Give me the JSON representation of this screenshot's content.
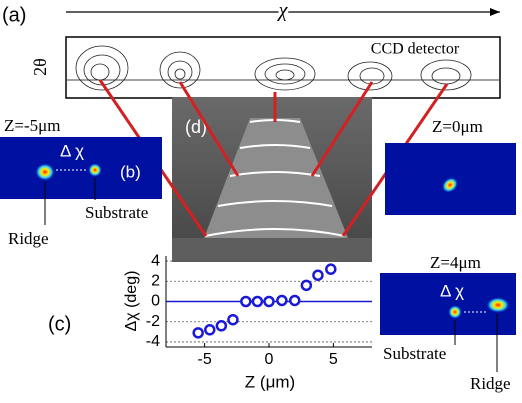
{
  "panels": {
    "a": {
      "label": "(a)",
      "axis_label": "χ",
      "y_label": "2θ",
      "detector": "CCD detector"
    },
    "b": {
      "label": "(b)",
      "z": "Z=-5μm",
      "delta": "Δ χ",
      "left": "Ridge",
      "right": "Substrate"
    },
    "d": {
      "label": "(d)"
    },
    "right_top": {
      "z": "Z=0μm"
    },
    "right_bottom": {
      "z": "Z=4μm",
      "delta": "Δ χ",
      "left": "Substrate",
      "right": "Ridge"
    }
  },
  "chart_data": {
    "type": "scatter",
    "label": "(c)",
    "x_label": "Z (μm)",
    "y_label": "Δχ (deg)",
    "x": [
      -5.5,
      -4.6,
      -3.7,
      -2.8,
      -1.8,
      -0.9,
      0,
      1,
      2,
      2.9,
      3.8,
      4.8
    ],
    "y": [
      -3.1,
      -2.8,
      -2.4,
      -1.8,
      0,
      0,
      0,
      0.1,
      0.1,
      1.6,
      2.6,
      3.2
    ],
    "color": "#1a1ad6",
    "xlim": [
      -8,
      8
    ],
    "ylim": [
      -4.5,
      4.5
    ],
    "xticks": [
      -5,
      0,
      5
    ],
    "yticks": [
      4,
      2,
      0,
      -2,
      -4
    ],
    "grid": true
  }
}
